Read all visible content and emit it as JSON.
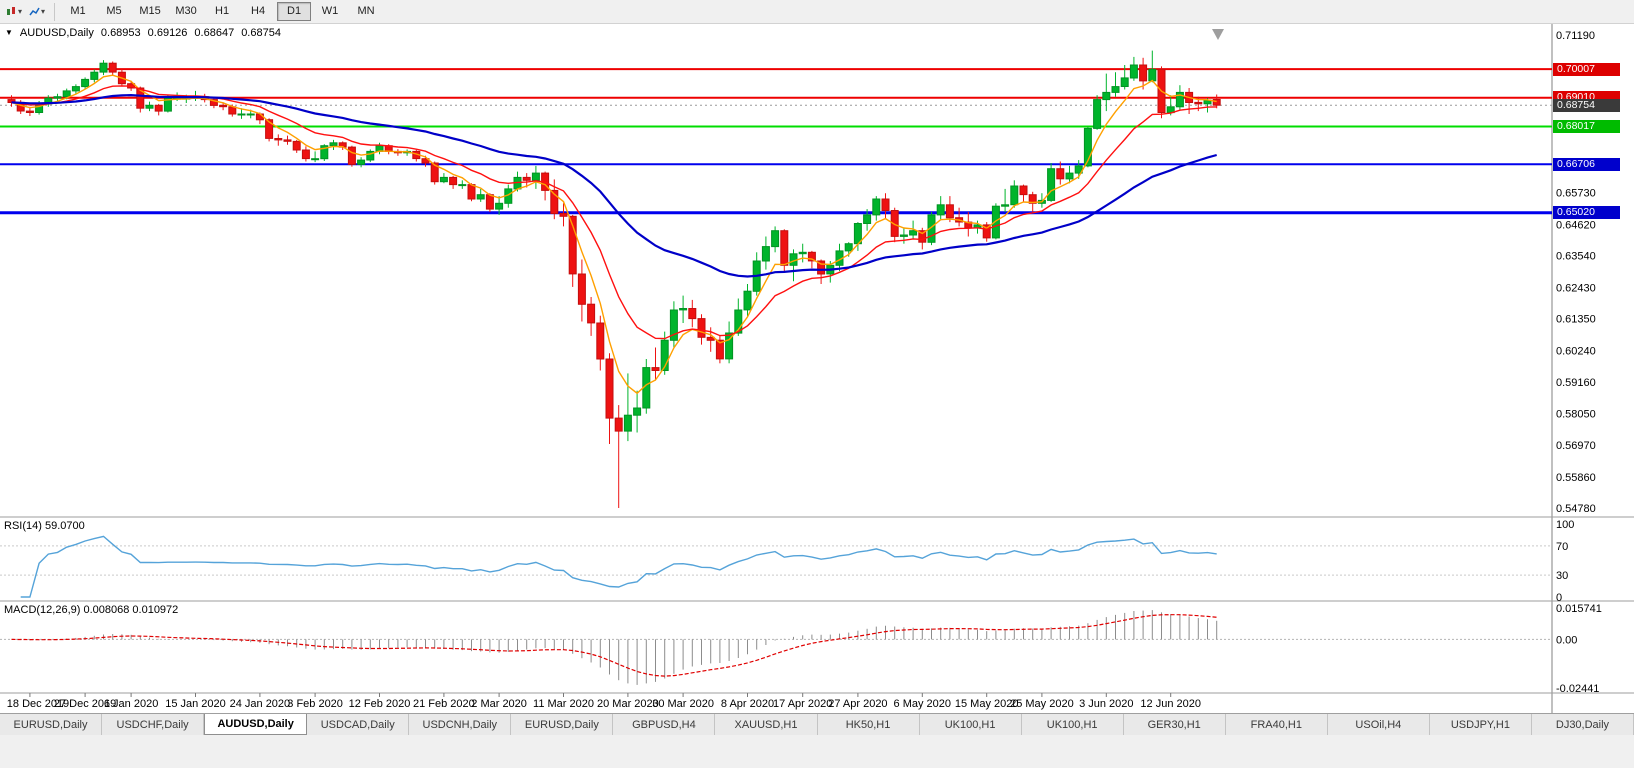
{
  "icons": {
    "symbol_marker": "▼",
    "dropdown_caret": "▾"
  },
  "toolbar": {
    "timeframes": [
      "M1",
      "M5",
      "M15",
      "M30",
      "H1",
      "H4",
      "D1",
      "W1",
      "MN"
    ],
    "active": "D1"
  },
  "chart_header": {
    "symbol_period": "AUDUSD,Daily",
    "open": "0.68953",
    "high": "0.69126",
    "low": "0.68647",
    "close": "0.68754"
  },
  "tabs": {
    "active_index": 2,
    "items": [
      "EURUSD,Daily",
      "USDCHF,Daily",
      "AUDUSD,Daily",
      "USDCAD,Daily",
      "USDCNH,Daily",
      "EURUSD,Daily",
      "GBPUSD,H4",
      "XAUUSD,H1",
      "HK50,H1",
      "UK100,H1",
      "UK100,H1",
      "GER30,H1",
      "FRA40,H1",
      "USOil,H4",
      "USDJPY,H1",
      "DJ30,Daily"
    ]
  },
  "rsi": {
    "label": "RSI(14) 59.0700",
    "period": 14,
    "current": "59.0700",
    "color": "#55A3D9",
    "dashed_levels": [
      70,
      30
    ],
    "levels": [
      {
        "v": 100,
        "t": "100"
      },
      {
        "v": 70,
        "t": "70"
      },
      {
        "v": 30,
        "t": "30"
      },
      {
        "v": 0,
        "t": "0"
      }
    ]
  },
  "macd": {
    "label": "MACD(12,26,9) 0.008068 0.010972",
    "fast": 12,
    "slow": 26,
    "signal": 9,
    "main_current": "0.008068",
    "signal_current": "0.010972",
    "hist_color": "#8C8C8C",
    "signal_color": "#E00000",
    "max": 0.015741,
    "min": -0.02441,
    "axis": [
      {
        "v": 0.015741,
        "t": "0.015741"
      },
      {
        "v": 0,
        "t": "0.00"
      },
      {
        "v": -0.02441,
        "t": "-0.02441"
      }
    ]
  },
  "chart_data": {
    "type": "candlestick",
    "title": "AUDUSD,Daily",
    "symbol": "AUDUSD",
    "period": "Daily",
    "y_axis": {
      "max": 0.7119,
      "min": 0.5478
    },
    "colors": {
      "up": "#00B42C",
      "up_border": "#009422",
      "down": "#EE1212",
      "down_border": "#C40E0E",
      "background": "#FFFFFF"
    },
    "y_axis_labels": [
      {
        "v": 0.7119,
        "t": "0.71190"
      },
      {
        "v": 0.6573,
        "t": "0.65730"
      },
      {
        "v": 0.6462,
        "t": "0.64620"
      },
      {
        "v": 0.6354,
        "t": "0.63540"
      },
      {
        "v": 0.6243,
        "t": "0.62430"
      },
      {
        "v": 0.6135,
        "t": "0.61350"
      },
      {
        "v": 0.6024,
        "t": "0.60240"
      },
      {
        "v": 0.5916,
        "t": "0.59160"
      },
      {
        "v": 0.5805,
        "t": "0.58050"
      },
      {
        "v": 0.5697,
        "t": "0.56970"
      },
      {
        "v": 0.5586,
        "t": "0.55860"
      },
      {
        "v": 0.5478,
        "t": "0.54780"
      }
    ],
    "levels": [
      {
        "value": 0.70007,
        "label": "0.70007",
        "color": "#EE0000",
        "tag": "#DD0000",
        "width": 2
      },
      {
        "value": 0.6901,
        "label": "0.69010",
        "color": "#EE0000",
        "tag": "#DD0000",
        "width": 2
      },
      {
        "value": 0.68017,
        "label": "0.68017",
        "color": "#00DD00",
        "tag": "#00BB00",
        "width": 2
      },
      {
        "value": 0.66706,
        "label": "0.66706",
        "color": "#0000EE",
        "tag": "#0000CC",
        "width": 2
      },
      {
        "value": 0.6502,
        "label": "0.65020",
        "color": "#0000EE",
        "tag": "#0000CC",
        "width": 3
      }
    ],
    "current_price": {
      "value": 0.68754,
      "label": "0.68754",
      "tag": "#3A3A3A"
    },
    "moving_averages": [
      {
        "type": "ema",
        "period": 5,
        "color": "#FFA000",
        "width": 1.4
      },
      {
        "type": "ema",
        "period": 13,
        "color": "#FF1010",
        "width": 1.4
      },
      {
        "type": "ema",
        "period": 40,
        "color": "#0000C8",
        "width": 2.2
      }
    ],
    "date_labels": [
      {
        "index": 2,
        "label": "18 Dec 2019"
      },
      {
        "index": 8,
        "label": "27 Dec 2019"
      },
      {
        "index": 13,
        "label": "6 Jan 2020"
      },
      {
        "index": 20,
        "label": "15 Jan 2020"
      },
      {
        "index": 27,
        "label": "24 Jan 2020"
      },
      {
        "index": 33,
        "label": "3 Feb 2020"
      },
      {
        "index": 40,
        "label": "12 Feb 2020"
      },
      {
        "index": 47,
        "label": "21 Feb 2020"
      },
      {
        "index": 53,
        "label": "2 Mar 2020"
      },
      {
        "index": 60,
        "label": "11 Mar 2020"
      },
      {
        "index": 67,
        "label": "20 Mar 2020"
      },
      {
        "index": 73,
        "label": "30 Mar 2020"
      },
      {
        "index": 80,
        "label": "8 Apr 2020"
      },
      {
        "index": 86,
        "label": "17 Apr 2020"
      },
      {
        "index": 92,
        "label": "27 Apr 2020"
      },
      {
        "index": 99,
        "label": "6 May 2020"
      },
      {
        "index": 106,
        "label": "15 May 2020"
      },
      {
        "index": 112,
        "label": "25 May 2020"
      },
      {
        "index": 119,
        "label": "3 Jun 2020"
      },
      {
        "index": 126,
        "label": "12 Jun 2020"
      }
    ],
    "ohlc": [
      [
        0.6895,
        0.691,
        0.687,
        0.6885
      ],
      [
        0.6885,
        0.6893,
        0.6845,
        0.6855
      ],
      [
        0.6855,
        0.687,
        0.6838,
        0.685
      ],
      [
        0.685,
        0.689,
        0.6843,
        0.688
      ],
      [
        0.688,
        0.691,
        0.687,
        0.69
      ],
      [
        0.69,
        0.6915,
        0.6885,
        0.6905
      ],
      [
        0.6905,
        0.6933,
        0.6896,
        0.6925
      ],
      [
        0.6925,
        0.6948,
        0.6915,
        0.694
      ],
      [
        0.694,
        0.6972,
        0.693,
        0.6965
      ],
      [
        0.6965,
        0.7,
        0.6955,
        0.699
      ],
      [
        0.699,
        0.7032,
        0.698,
        0.7021
      ],
      [
        0.7021,
        0.7027,
        0.698,
        0.699
      ],
      [
        0.699,
        0.7,
        0.694,
        0.695
      ],
      [
        0.695,
        0.696,
        0.6925,
        0.6935
      ],
      [
        0.6935,
        0.694,
        0.685,
        0.6865
      ],
      [
        0.6865,
        0.6888,
        0.6855,
        0.6875
      ],
      [
        0.6875,
        0.688,
        0.684,
        0.6855
      ],
      [
        0.6855,
        0.691,
        0.685,
        0.69
      ],
      [
        0.69,
        0.692,
        0.689,
        0.69
      ],
      [
        0.69,
        0.6912,
        0.6883,
        0.69
      ],
      [
        0.69,
        0.6925,
        0.689,
        0.6905
      ],
      [
        0.6905,
        0.6915,
        0.6885,
        0.6895
      ],
      [
        0.6895,
        0.69,
        0.6865,
        0.6875
      ],
      [
        0.6875,
        0.6885,
        0.6858,
        0.687
      ],
      [
        0.687,
        0.6878,
        0.6836,
        0.6845
      ],
      [
        0.6845,
        0.6865,
        0.6828,
        0.6845
      ],
      [
        0.6845,
        0.686,
        0.683,
        0.6845
      ],
      [
        0.6845,
        0.685,
        0.681,
        0.6825
      ],
      [
        0.6825,
        0.683,
        0.675,
        0.676
      ],
      [
        0.676,
        0.6774,
        0.6735,
        0.6755
      ],
      [
        0.6755,
        0.677,
        0.6738,
        0.675
      ],
      [
        0.675,
        0.6755,
        0.671,
        0.672
      ],
      [
        0.672,
        0.6733,
        0.668,
        0.669
      ],
      [
        0.669,
        0.6715,
        0.6678,
        0.669
      ],
      [
        0.669,
        0.674,
        0.6682,
        0.6735
      ],
      [
        0.6735,
        0.6755,
        0.672,
        0.6745
      ],
      [
        0.6745,
        0.675,
        0.672,
        0.673
      ],
      [
        0.673,
        0.6735,
        0.6662,
        0.667
      ],
      [
        0.667,
        0.6695,
        0.666,
        0.6685
      ],
      [
        0.6685,
        0.6722,
        0.6678,
        0.6715
      ],
      [
        0.6715,
        0.6745,
        0.6705,
        0.6735
      ],
      [
        0.6735,
        0.674,
        0.6705,
        0.6715
      ],
      [
        0.6715,
        0.6723,
        0.67,
        0.671
      ],
      [
        0.671,
        0.6722,
        0.67,
        0.6715
      ],
      [
        0.6715,
        0.672,
        0.668,
        0.669
      ],
      [
        0.669,
        0.67,
        0.6662,
        0.6675
      ],
      [
        0.6675,
        0.668,
        0.66,
        0.661
      ],
      [
        0.661,
        0.664,
        0.6605,
        0.6625
      ],
      [
        0.6625,
        0.663,
        0.6585,
        0.66
      ],
      [
        0.66,
        0.6615,
        0.6585,
        0.66
      ],
      [
        0.66,
        0.6605,
        0.6542,
        0.655
      ],
      [
        0.655,
        0.6585,
        0.654,
        0.6565
      ],
      [
        0.6565,
        0.657,
        0.6505,
        0.6515
      ],
      [
        0.6515,
        0.656,
        0.6495,
        0.6535
      ],
      [
        0.6535,
        0.66,
        0.652,
        0.6585
      ],
      [
        0.6585,
        0.6645,
        0.6576,
        0.6625
      ],
      [
        0.6625,
        0.664,
        0.659,
        0.6615
      ],
      [
        0.6615,
        0.6665,
        0.6585,
        0.664
      ],
      [
        0.664,
        0.6645,
        0.6545,
        0.658
      ],
      [
        0.658,
        0.6618,
        0.648,
        0.65
      ],
      [
        0.65,
        0.6535,
        0.6455,
        0.649
      ],
      [
        0.649,
        0.6495,
        0.6245,
        0.629
      ],
      [
        0.629,
        0.634,
        0.6125,
        0.6185
      ],
      [
        0.6185,
        0.621,
        0.6075,
        0.612
      ],
      [
        0.612,
        0.6145,
        0.5955,
        0.5995
      ],
      [
        0.5995,
        0.6015,
        0.57,
        0.579
      ],
      [
        0.579,
        0.5835,
        0.5478,
        0.5745
      ],
      [
        0.5745,
        0.5945,
        0.571,
        0.58
      ],
      [
        0.58,
        0.5885,
        0.574,
        0.5825
      ],
      [
        0.5825,
        0.5995,
        0.5805,
        0.5965
      ],
      [
        0.5965,
        0.6035,
        0.592,
        0.5955
      ],
      [
        0.5955,
        0.609,
        0.594,
        0.606
      ],
      [
        0.606,
        0.6195,
        0.6035,
        0.6165
      ],
      [
        0.6165,
        0.6215,
        0.612,
        0.617
      ],
      [
        0.617,
        0.62,
        0.6105,
        0.6135
      ],
      [
        0.6135,
        0.615,
        0.6045,
        0.607
      ],
      [
        0.607,
        0.6105,
        0.602,
        0.606
      ],
      [
        0.606,
        0.6075,
        0.598,
        0.5995
      ],
      [
        0.5995,
        0.6125,
        0.598,
        0.6085
      ],
      [
        0.6085,
        0.6205,
        0.6075,
        0.6165
      ],
      [
        0.6165,
        0.6255,
        0.614,
        0.623
      ],
      [
        0.623,
        0.6365,
        0.6215,
        0.6335
      ],
      [
        0.6335,
        0.642,
        0.6305,
        0.6385
      ],
      [
        0.6385,
        0.6455,
        0.6365,
        0.644
      ],
      [
        0.644,
        0.6445,
        0.63,
        0.632
      ],
      [
        0.632,
        0.6375,
        0.6265,
        0.636
      ],
      [
        0.636,
        0.6395,
        0.633,
        0.6365
      ],
      [
        0.6365,
        0.637,
        0.631,
        0.6335
      ],
      [
        0.6335,
        0.634,
        0.6255,
        0.629
      ],
      [
        0.629,
        0.6335,
        0.626,
        0.632
      ],
      [
        0.632,
        0.6395,
        0.63,
        0.637
      ],
      [
        0.637,
        0.64,
        0.635,
        0.6395
      ],
      [
        0.6395,
        0.647,
        0.637,
        0.6465
      ],
      [
        0.6465,
        0.6515,
        0.644,
        0.6495
      ],
      [
        0.6495,
        0.656,
        0.6475,
        0.655
      ],
      [
        0.655,
        0.657,
        0.648,
        0.651
      ],
      [
        0.651,
        0.652,
        0.64,
        0.642
      ],
      [
        0.642,
        0.645,
        0.6395,
        0.6425
      ],
      [
        0.6425,
        0.6475,
        0.641,
        0.644
      ],
      [
        0.644,
        0.645,
        0.6375,
        0.64
      ],
      [
        0.64,
        0.6505,
        0.639,
        0.6495
      ],
      [
        0.6495,
        0.656,
        0.648,
        0.653
      ],
      [
        0.653,
        0.656,
        0.647,
        0.6485
      ],
      [
        0.6485,
        0.652,
        0.6455,
        0.647
      ],
      [
        0.647,
        0.6505,
        0.642,
        0.645
      ],
      [
        0.645,
        0.6475,
        0.643,
        0.646
      ],
      [
        0.646,
        0.647,
        0.6402,
        0.6415
      ],
      [
        0.6415,
        0.6535,
        0.641,
        0.6525
      ],
      [
        0.6525,
        0.6585,
        0.6505,
        0.653
      ],
      [
        0.653,
        0.6615,
        0.652,
        0.6595
      ],
      [
        0.6595,
        0.66,
        0.654,
        0.6565
      ],
      [
        0.6565,
        0.6575,
        0.6505,
        0.6535
      ],
      [
        0.6535,
        0.657,
        0.652,
        0.6545
      ],
      [
        0.6545,
        0.6675,
        0.654,
        0.6655
      ],
      [
        0.6655,
        0.668,
        0.66,
        0.662
      ],
      [
        0.662,
        0.6665,
        0.6605,
        0.664
      ],
      [
        0.664,
        0.6685,
        0.662,
        0.6665
      ],
      [
        0.6665,
        0.68,
        0.666,
        0.6795
      ],
      [
        0.6795,
        0.691,
        0.679,
        0.6895
      ],
      [
        0.6895,
        0.6985,
        0.6855,
        0.692
      ],
      [
        0.692,
        0.699,
        0.6905,
        0.694
      ],
      [
        0.694,
        0.7015,
        0.693,
        0.697
      ],
      [
        0.697,
        0.7043,
        0.696,
        0.7015
      ],
      [
        0.7015,
        0.704,
        0.693,
        0.696
      ],
      [
        0.696,
        0.7065,
        0.6955,
        0.7
      ],
      [
        0.7,
        0.701,
        0.683,
        0.685
      ],
      [
        0.685,
        0.691,
        0.684,
        0.687
      ],
      [
        0.687,
        0.6945,
        0.686,
        0.692
      ],
      [
        0.692,
        0.6935,
        0.6845,
        0.6885
      ],
      [
        0.6885,
        0.6905,
        0.6855,
        0.688
      ],
      [
        0.688,
        0.69,
        0.685,
        0.6893
      ],
      [
        0.68953,
        0.69126,
        0.68647,
        0.68754
      ]
    ]
  }
}
